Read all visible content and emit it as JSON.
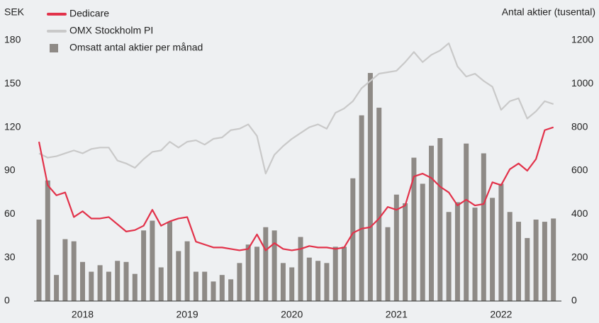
{
  "chart_data": {
    "type": "combo",
    "ylabel": "SEK",
    "y2label": "Antal aktier (tusental)",
    "categories": [
      null,
      null,
      null,
      null,
      null,
      "2018",
      null,
      null,
      null,
      null,
      null,
      null,
      null,
      null,
      null,
      null,
      null,
      "2019",
      null,
      null,
      null,
      null,
      null,
      null,
      null,
      null,
      null,
      null,
      null,
      "2020",
      null,
      null,
      null,
      null,
      null,
      null,
      null,
      null,
      null,
      null,
      null,
      "2021",
      null,
      null,
      null,
      null,
      null,
      null,
      null,
      null,
      null,
      null,
      null,
      "2022",
      null,
      null,
      null,
      null,
      null,
      null
    ],
    "ylim": [
      0,
      180
    ],
    "yticks": [
      0,
      30,
      60,
      90,
      120,
      150,
      180
    ],
    "y2lim": [
      0,
      1200
    ],
    "y2ticks": [
      0,
      200,
      400,
      600,
      800,
      1000,
      1200
    ],
    "legend": "upper left",
    "series": [
      {
        "name": "Dedicare",
        "type": "line",
        "color": "#e2324a",
        "values": [
          110,
          80,
          73,
          75,
          58,
          62,
          57,
          57,
          58,
          53,
          48,
          49,
          52,
          63,
          52,
          55,
          57,
          58,
          41,
          39,
          37,
          37,
          36,
          35,
          36,
          46,
          35,
          40,
          36,
          35,
          36,
          38,
          37,
          37,
          36,
          37,
          47,
          50,
          51,
          57,
          65,
          63,
          66,
          86,
          88,
          85,
          79,
          75,
          66,
          70,
          66,
          67,
          82,
          80,
          91,
          95,
          90,
          98,
          118,
          120
        ]
      },
      {
        "name": "OMX Stockholm PI",
        "type": "line",
        "color": "#c9c9c9",
        "values": [
          102,
          99,
          100,
          102,
          104,
          102,
          105,
          106,
          106,
          97,
          95,
          92,
          98,
          103,
          104,
          110,
          106,
          110,
          111,
          108,
          112,
          113,
          118,
          119,
          122,
          114,
          88,
          101,
          107,
          112,
          116,
          120,
          122,
          119,
          130,
          133,
          138,
          147,
          152,
          157,
          158,
          159,
          165,
          172,
          165,
          170,
          173,
          178,
          162,
          155,
          157,
          152,
          148,
          132,
          138,
          140,
          126,
          131,
          138,
          136
        ]
      },
      {
        "name": "Omsatt antal aktier per månad",
        "type": "bar",
        "axis": "y2",
        "color": "#8e8a86",
        "values": [
          375,
          555,
          120,
          285,
          275,
          180,
          135,
          165,
          135,
          185,
          180,
          125,
          325,
          370,
          155,
          365,
          230,
          275,
          135,
          135,
          90,
          120,
          100,
          175,
          260,
          250,
          340,
          325,
          175,
          155,
          295,
          200,
          185,
          175,
          250,
          250,
          565,
          855,
          1050,
          890,
          340,
          490,
          450,
          660,
          540,
          715,
          750,
          410,
          455,
          725,
          430,
          680,
          475,
          540,
          410,
          365,
          290,
          375,
          365,
          380
        ]
      }
    ]
  }
}
